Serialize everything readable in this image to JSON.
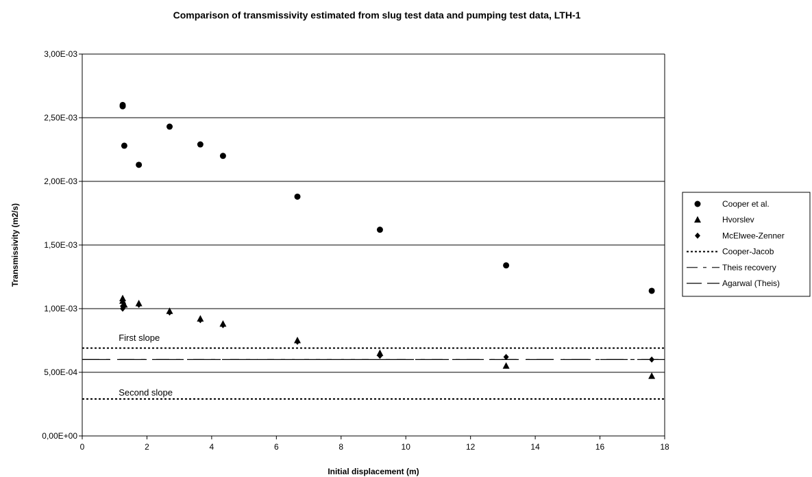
{
  "chart_data": {
    "type": "scatter",
    "title": "Comparison of transmissivity estimated from slug test data and pumping test data, LTH-1",
    "xlabel": "Initial displacement (m)",
    "ylabel": "Transmissivity (m2/s)",
    "xlim": [
      0,
      18
    ],
    "ylim": [
      0,
      0.003
    ],
    "x_ticks": [
      "0",
      "2",
      "4",
      "6",
      "8",
      "10",
      "12",
      "14",
      "16",
      "18"
    ],
    "y_ticks": [
      "0,00E+00",
      "5,00E-04",
      "1,00E-03",
      "1,50E-03",
      "2,00E-03",
      "2,50E-03",
      "3,00E-03"
    ],
    "grid": "horizontal",
    "legend_position": "right",
    "series": [
      {
        "name": "Cooper et al.",
        "marker": "circle",
        "points": [
          [
            1.25,
            0.0026
          ],
          [
            1.25,
            0.00259
          ],
          [
            1.3,
            0.00228
          ],
          [
            1.75,
            0.00213
          ],
          [
            2.7,
            0.00243
          ],
          [
            3.65,
            0.00229
          ],
          [
            4.35,
            0.0022
          ],
          [
            6.65,
            0.00188
          ],
          [
            9.2,
            0.00162
          ],
          [
            13.1,
            0.00134
          ],
          [
            17.6,
            0.00114
          ]
        ]
      },
      {
        "name": "Hvorslev",
        "marker": "triangle",
        "points": [
          [
            1.25,
            0.00108
          ],
          [
            1.25,
            0.00106
          ],
          [
            1.3,
            0.00103
          ],
          [
            1.75,
            0.00104
          ],
          [
            2.7,
            0.00098
          ],
          [
            3.65,
            0.00092
          ],
          [
            4.35,
            0.00088
          ],
          [
            6.65,
            0.00075
          ],
          [
            9.2,
            0.00065
          ],
          [
            13.1,
            0.00055
          ],
          [
            17.6,
            0.00047
          ]
        ]
      },
      {
        "name": "McElwee-Zenner",
        "marker": "diamond",
        "points": [
          [
            1.25,
            0.00102
          ],
          [
            1.25,
            0.001
          ],
          [
            1.3,
            0.00102
          ],
          [
            1.75,
            0.00103
          ],
          [
            2.7,
            0.00097
          ],
          [
            3.65,
            0.00091
          ],
          [
            4.35,
            0.00087
          ],
          [
            6.65,
            0.00074
          ],
          [
            9.2,
            0.00063
          ],
          [
            13.1,
            0.00062
          ],
          [
            17.6,
            0.0006
          ]
        ]
      },
      {
        "name": "Cooper-Jacob",
        "type": "hline",
        "style": "dotted",
        "values": [
          0.00069,
          0.00029
        ]
      },
      {
        "name": "Theis recovery",
        "type": "hline",
        "style": "dash-dot",
        "values": [
          0.0006
        ]
      },
      {
        "name": "Agarwal (Theis)",
        "type": "hline",
        "style": "long-dash",
        "values": [
          0.0006
        ]
      }
    ],
    "annotations": [
      {
        "text": "First slope",
        "x": 1.0,
        "y": 0.00077
      },
      {
        "text": "Second slope",
        "x": 1.0,
        "y": 0.00034
      }
    ]
  }
}
